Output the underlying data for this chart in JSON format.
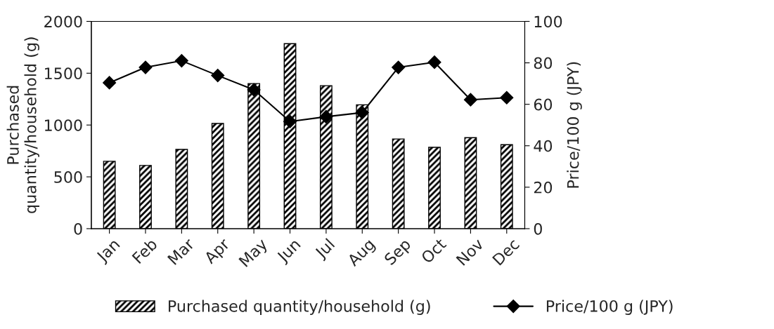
{
  "chart_data": {
    "type": "bar",
    "categories": [
      "Jan",
      "Feb",
      "Mar",
      "Apr",
      "May",
      "Jun",
      "Jul",
      "Aug",
      "Sep",
      "Oct",
      "Nov",
      "Dec"
    ],
    "ylabel": "Purchased\nquantity/household (g)",
    "y2label": "Price/100 g (JPY)",
    "series": [
      {
        "name": "Purchased quantity/household (g)",
        "color": "#000000",
        "values": [
          650,
          610,
          765,
          1015,
          1400,
          1785,
          1380,
          1195,
          865,
          785,
          878,
          810
        ]
      },
      {
        "name": "Price/100 g (JPY)",
        "type": "line",
        "axis": "y2",
        "color": "#000000",
        "marker": "diamond",
        "values": [
          70.4,
          77.8,
          81,
          73.9,
          67,
          51.7,
          54,
          56,
          77.8,
          80.3,
          62.2,
          63.2
        ]
      }
    ],
    "ylim": [
      0,
      2000
    ],
    "yticks": [
      0,
      500,
      1000,
      1500,
      2000
    ],
    "y2lim": [
      0,
      100
    ],
    "y2ticks": [
      0,
      20,
      40,
      60,
      80,
      100
    ],
    "grid": false,
    "legend": "bottom"
  }
}
